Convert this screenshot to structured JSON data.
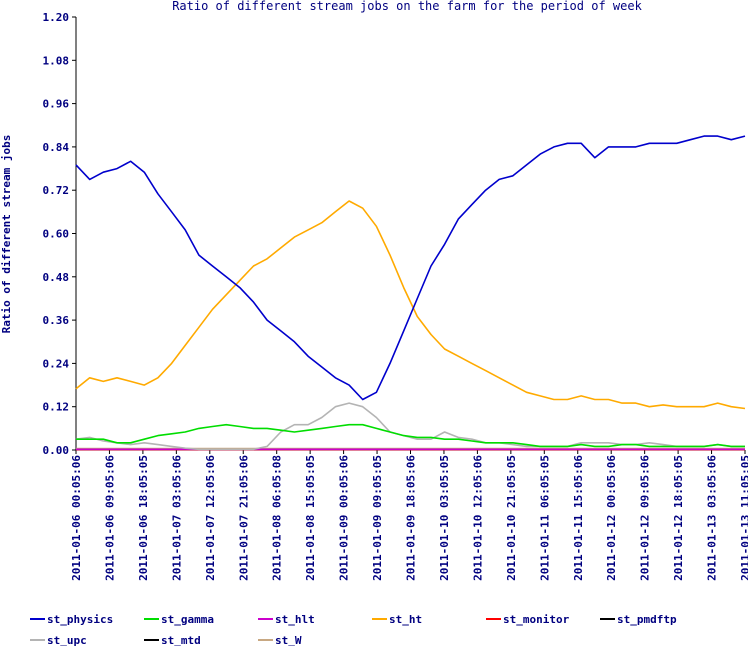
{
  "chart_data": {
    "type": "line",
    "title": "Ratio of different stream jobs on the farm for the period of week",
    "xlabel": "",
    "ylabel": "Ratio of different stream jobs",
    "ylim": [
      0,
      1.2
    ],
    "yticks": [
      "0.00",
      "0.12",
      "0.24",
      "0.36",
      "0.48",
      "0.60",
      "0.72",
      "0.84",
      "0.96",
      "1.08",
      "1.20"
    ],
    "xticks": [
      "2011-01-06 00:05:06",
      "2011-01-06 09:05:06",
      "2011-01-06 18:05:05",
      "2011-01-07 03:05:06",
      "2011-01-07 12:05:06",
      "2011-01-07 21:05:06",
      "2011-01-08 06:05:08",
      "2011-01-08 15:05:05",
      "2011-01-09 00:05:06",
      "2011-01-09 09:05:05",
      "2011-01-09 18:05:06",
      "2011-01-10 03:05:05",
      "2011-01-10 12:05:06",
      "2011-01-10 21:05:05",
      "2011-01-11 06:05:05",
      "2011-01-11 15:05:06",
      "2011-01-12 00:05:06",
      "2011-01-12 09:05:06",
      "2011-01-12 18:05:05",
      "2011-01-13 03:05:06",
      "2011-01-13 11:05:05"
    ],
    "grid": false,
    "legend_position": "bottom",
    "series": [
      {
        "name": "st_physics",
        "color": "#0000cc",
        "values": [
          0.79,
          0.75,
          0.77,
          0.78,
          0.8,
          0.77,
          0.71,
          0.66,
          0.61,
          0.54,
          0.51,
          0.48,
          0.45,
          0.41,
          0.36,
          0.33,
          0.3,
          0.26,
          0.23,
          0.2,
          0.18,
          0.14,
          0.16,
          0.24,
          0.33,
          0.42,
          0.51,
          0.57,
          0.64,
          0.68,
          0.72,
          0.75,
          0.76,
          0.79,
          0.82,
          0.84,
          0.85,
          0.85,
          0.81,
          0.84,
          0.84,
          0.84,
          0.85,
          0.85,
          0.85,
          0.86,
          0.87,
          0.87,
          0.86,
          0.87
        ]
      },
      {
        "name": "st_gamma",
        "color": "#00dd00",
        "values": [
          0.03,
          0.03,
          0.03,
          0.02,
          0.02,
          0.03,
          0.04,
          0.045,
          0.05,
          0.06,
          0.065,
          0.07,
          0.065,
          0.06,
          0.06,
          0.055,
          0.05,
          0.055,
          0.06,
          0.065,
          0.07,
          0.07,
          0.06,
          0.05,
          0.04,
          0.035,
          0.035,
          0.03,
          0.03,
          0.025,
          0.02,
          0.02,
          0.02,
          0.015,
          0.01,
          0.01,
          0.01,
          0.015,
          0.01,
          0.01,
          0.015,
          0.015,
          0.01,
          0.01,
          0.01,
          0.01,
          0.01,
          0.015,
          0.01,
          0.01
        ]
      },
      {
        "name": "st_hlt",
        "color": "#cc00cc",
        "values": [
          0.002,
          0.002,
          0.002,
          0.002,
          0.002,
          0.002,
          0.002,
          0.002,
          0.002,
          0.002,
          0.002,
          0.002,
          0.002,
          0.002,
          0.002,
          0.002,
          0.002,
          0.002,
          0.002,
          0.002,
          0.002,
          0.002,
          0.002,
          0.002,
          0.002,
          0.002,
          0.002,
          0.002,
          0.002,
          0.002,
          0.002,
          0.002,
          0.002,
          0.002,
          0.002,
          0.002,
          0.002,
          0.002,
          0.002,
          0.002,
          0.002,
          0.002,
          0.002,
          0.002,
          0.002,
          0.002,
          0.002,
          0.002,
          0.002,
          0.002
        ]
      },
      {
        "name": "st_ht",
        "color": "#ffaa00",
        "values": [
          0.17,
          0.2,
          0.19,
          0.2,
          0.19,
          0.18,
          0.2,
          0.24,
          0.29,
          0.34,
          0.39,
          0.43,
          0.47,
          0.51,
          0.53,
          0.56,
          0.59,
          0.61,
          0.63,
          0.66,
          0.69,
          0.67,
          0.62,
          0.54,
          0.45,
          0.37,
          0.32,
          0.28,
          0.26,
          0.24,
          0.22,
          0.2,
          0.18,
          0.16,
          0.15,
          0.14,
          0.14,
          0.15,
          0.14,
          0.14,
          0.13,
          0.13,
          0.12,
          0.125,
          0.12,
          0.12,
          0.12,
          0.13,
          0.12,
          0.115
        ]
      },
      {
        "name": "st_monitor",
        "color": "#ff0000",
        "values": [
          0.001,
          0.001,
          0.001,
          0.001,
          0.001,
          0.001,
          0.001,
          0.001,
          0.001,
          0.001,
          0.001,
          0.001,
          0.001,
          0.001,
          0.001,
          0.001,
          0.001,
          0.001,
          0.001,
          0.001,
          0.001,
          0.001,
          0.001,
          0.001,
          0.001,
          0.001,
          0.001,
          0.001,
          0.001,
          0.001,
          0.001,
          0.001,
          0.001,
          0.001,
          0.001,
          0.001,
          0.001,
          0.001,
          0.001,
          0.001,
          0.001,
          0.001,
          0.001,
          0.001,
          0.001,
          0.001,
          0.001,
          0.001,
          0.001,
          0.001
        ]
      },
      {
        "name": "st_pmdftp",
        "color": "#000000",
        "values": [
          0.001,
          0.001,
          0.001,
          0.001,
          0.001,
          0.001,
          0.001,
          0.001,
          0.001,
          0.001,
          0.001,
          0.001,
          0.001,
          0.001,
          0.001,
          0.001,
          0.001,
          0.001,
          0.001,
          0.001,
          0.001,
          0.001,
          0.001,
          0.001,
          0.001,
          0.001,
          0.001,
          0.001,
          0.001,
          0.001,
          0.001,
          0.001,
          0.001,
          0.001,
          0.001,
          0.001,
          0.001,
          0.001,
          0.001,
          0.001,
          0.001,
          0.001,
          0.001,
          0.001,
          0.001,
          0.001,
          0.001,
          0.001,
          0.001,
          0.001
        ]
      },
      {
        "name": "st_upc",
        "color": "#b4b4b4",
        "values": [
          0.03,
          0.035,
          0.025,
          0.02,
          0.015,
          0.02,
          0.015,
          0.01,
          0.005,
          0.002,
          0.002,
          0.002,
          0.002,
          0.002,
          0.01,
          0.05,
          0.07,
          0.07,
          0.09,
          0.12,
          0.13,
          0.12,
          0.09,
          0.05,
          0.04,
          0.03,
          0.03,
          0.05,
          0.035,
          0.03,
          0.02,
          0.02,
          0.015,
          0.01,
          0.01,
          0.01,
          0.01,
          0.02,
          0.02,
          0.02,
          0.015,
          0.015,
          0.02,
          0.015,
          0.01,
          0.01,
          0.01,
          0.015,
          0.01,
          0.01
        ]
      },
      {
        "name": "st_mtd",
        "color": "#000000",
        "values": [
          0.001,
          0.001,
          0.001,
          0.001,
          0.001,
          0.001,
          0.001,
          0.001,
          0.001,
          0.001,
          0.001,
          0.001,
          0.001,
          0.001,
          0.001,
          0.001,
          0.001,
          0.001,
          0.001,
          0.001,
          0.001,
          0.001,
          0.001,
          0.001,
          0.001,
          0.001,
          0.001,
          0.001,
          0.001,
          0.001,
          0.001,
          0.001,
          0.001,
          0.001,
          0.001,
          0.001,
          0.001,
          0.001,
          0.001,
          0.001,
          0.001,
          0.001,
          0.001,
          0.001,
          0.001,
          0.001,
          0.001,
          0.001,
          0.001,
          0.001
        ]
      },
      {
        "name": "st_W",
        "color": "#c8a882",
        "values": [
          0.004,
          0.004,
          0.004,
          0.004,
          0.004,
          0.004,
          0.004,
          0.004,
          0.004,
          0.004,
          0.004,
          0.004,
          0.004,
          0.004,
          0.004,
          0.004,
          0.004,
          0.004,
          0.004,
          0.004,
          0.004,
          0.004,
          0.004,
          0.004,
          0.004,
          0.004,
          0.004,
          0.004,
          0.004,
          0.004,
          0.004,
          0.004,
          0.004,
          0.004,
          0.004,
          0.004,
          0.004,
          0.004,
          0.004,
          0.004,
          0.004,
          0.004,
          0.004,
          0.004,
          0.004,
          0.004,
          0.004,
          0.004,
          0.004,
          0.004
        ]
      }
    ]
  }
}
